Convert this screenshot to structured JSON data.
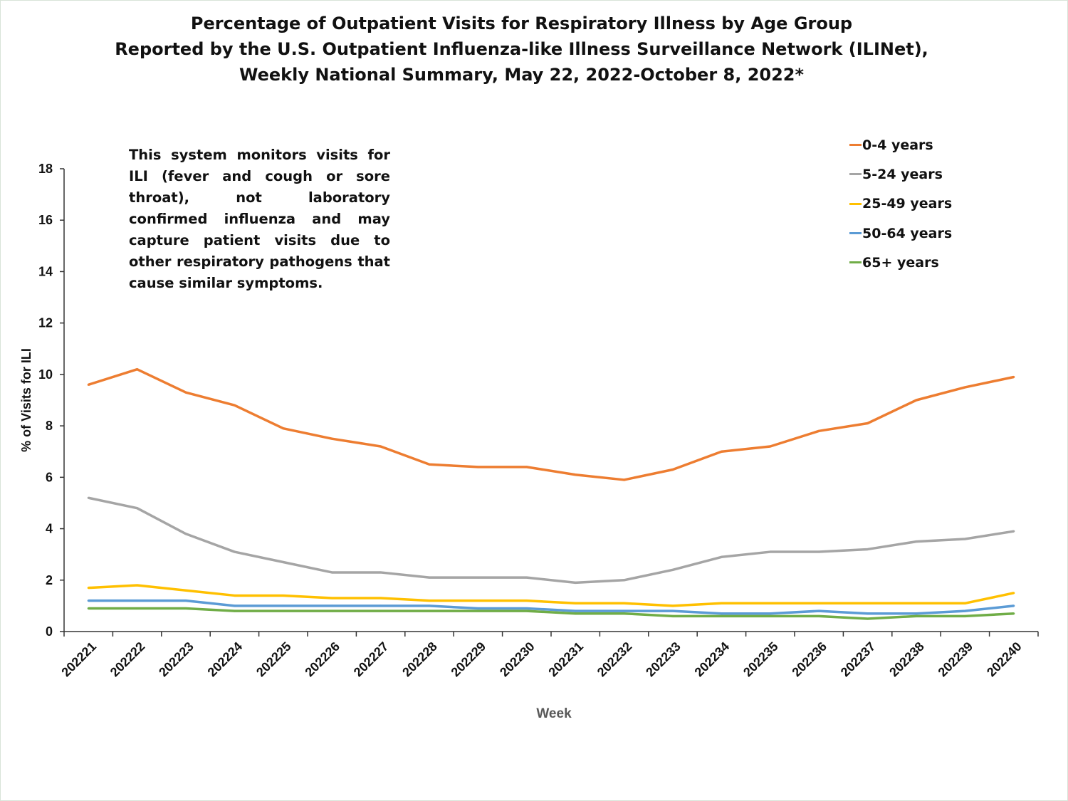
{
  "title_lines": [
    "Percentage of Outpatient Visits for Respiratory Illness by Age Group",
    "Reported by the U.S. Outpatient Influenza-like Illness Surveillance Network (ILINet),",
    "Weekly National Summary, May 22, 2022-October 8, 2022*"
  ],
  "note": "This system monitors visits for ILI (fever and cough or sore throat), not laboratory confirmed influenza and may capture patient visits due to other respiratory pathogens that cause similar symptoms.",
  "chart_data": {
    "type": "line",
    "xlabel": "Week",
    "ylabel": "% of Visits for ILI",
    "ylim": [
      0,
      18
    ],
    "yticks": [
      0,
      2,
      4,
      6,
      8,
      10,
      12,
      14,
      16,
      18
    ],
    "grid": false,
    "legend_position": "top-right",
    "categories": [
      "202221",
      "202222",
      "202223",
      "202224",
      "202225",
      "202226",
      "202227",
      "202228",
      "202229",
      "202230",
      "202231",
      "202232",
      "202233",
      "202234",
      "202235",
      "202236",
      "202237",
      "202238",
      "202239",
      "202240"
    ],
    "series": [
      {
        "name": "0-4 years",
        "color": "#ed7d31",
        "values": [
          9.6,
          10.2,
          9.3,
          8.8,
          7.9,
          7.5,
          7.2,
          6.5,
          6.4,
          6.4,
          6.1,
          5.9,
          6.3,
          7.0,
          7.2,
          7.8,
          8.1,
          9.0,
          9.5,
          9.9
        ]
      },
      {
        "name": "5-24 years",
        "color": "#a5a5a5",
        "values": [
          5.2,
          4.8,
          3.8,
          3.1,
          2.7,
          2.3,
          2.3,
          2.1,
          2.1,
          2.1,
          1.9,
          2.0,
          2.4,
          2.9,
          3.1,
          3.1,
          3.2,
          3.5,
          3.6,
          3.9
        ]
      },
      {
        "name": "25-49 years",
        "color": "#ffc000",
        "values": [
          1.7,
          1.8,
          1.6,
          1.4,
          1.4,
          1.3,
          1.3,
          1.2,
          1.2,
          1.2,
          1.1,
          1.1,
          1.0,
          1.1,
          1.1,
          1.1,
          1.1,
          1.1,
          1.1,
          1.5
        ]
      },
      {
        "name": "50-64 years",
        "color": "#5b9bd5",
        "values": [
          1.2,
          1.2,
          1.2,
          1.0,
          1.0,
          1.0,
          1.0,
          1.0,
          0.9,
          0.9,
          0.8,
          0.8,
          0.8,
          0.7,
          0.7,
          0.8,
          0.7,
          0.7,
          0.8,
          1.0
        ]
      },
      {
        "name": "65+ years",
        "color": "#70ad47",
        "values": [
          0.9,
          0.9,
          0.9,
          0.8,
          0.8,
          0.8,
          0.8,
          0.8,
          0.8,
          0.8,
          0.7,
          0.7,
          0.6,
          0.6,
          0.6,
          0.6,
          0.5,
          0.6,
          0.6,
          0.7
        ]
      }
    ]
  }
}
